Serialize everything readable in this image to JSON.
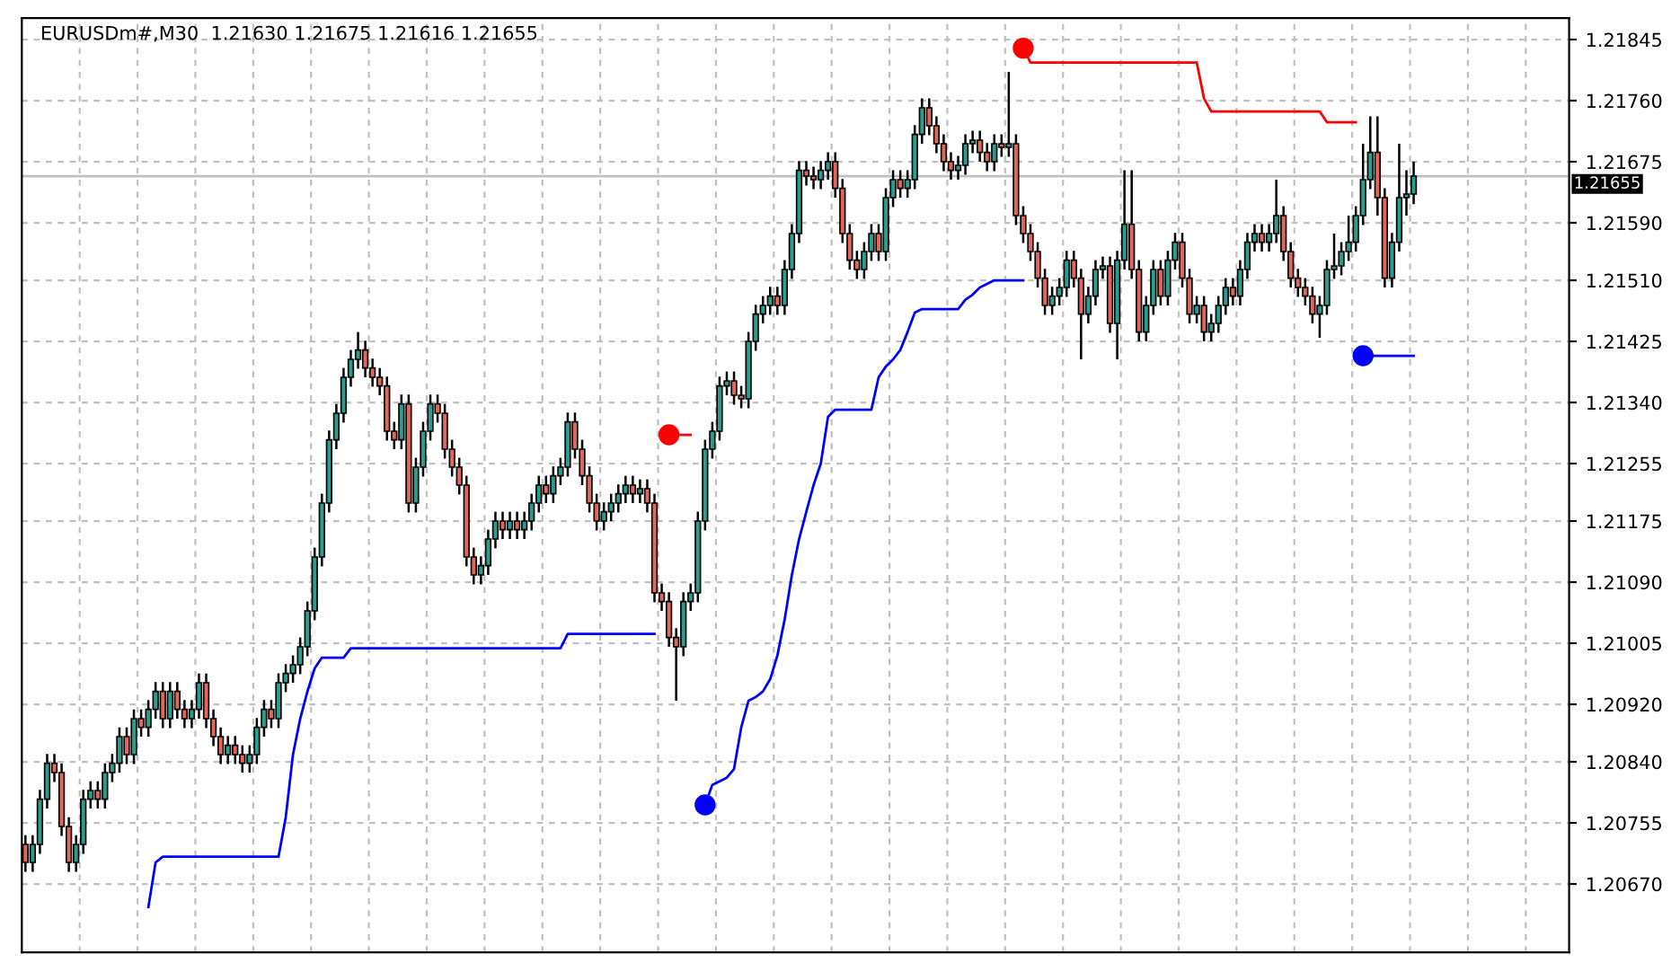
{
  "chart_data": {
    "type": "candlestick",
    "title": "EURUSDm#,M30  1.21630 1.21675 1.21616 1.21655",
    "categories": [
      null,
      null,
      null,
      null,
      null,
      null,
      null,
      null,
      null,
      null,
      null,
      null,
      null,
      null,
      null,
      null,
      null,
      null,
      null,
      null,
      null,
      null,
      null,
      null,
      null,
      null,
      null,
      null,
      null,
      null,
      null,
      null,
      null,
      null,
      null,
      null,
      null,
      null,
      null,
      null,
      null,
      null,
      null,
      null,
      null,
      null,
      null,
      null,
      null,
      null,
      null,
      null,
      null,
      null,
      null,
      null,
      null,
      null,
      null,
      null,
      null,
      null,
      null,
      null,
      null,
      null,
      null,
      null,
      null,
      null,
      null,
      null,
      null,
      null,
      null,
      null,
      null,
      null,
      null,
      null,
      null,
      null,
      null,
      null,
      null,
      null,
      null,
      null,
      null,
      null,
      null,
      null,
      null,
      null,
      null,
      null,
      null,
      null,
      null,
      null,
      null,
      null,
      null,
      null,
      null,
      null,
      null,
      null,
      null,
      null,
      null,
      null,
      null,
      null,
      null,
      null,
      null,
      null,
      null,
      null,
      null,
      null,
      null,
      null,
      null,
      null,
      null,
      null,
      null,
      null,
      null,
      null,
      null,
      null,
      null,
      null,
      null,
      null,
      null,
      null,
      null,
      null,
      null,
      null,
      null,
      null,
      null,
      null,
      null,
      null,
      null,
      null,
      null,
      null,
      null,
      null,
      null,
      null,
      null,
      null,
      null,
      null,
      null,
      null,
      null,
      null,
      null,
      null,
      null,
      null,
      null,
      null,
      null,
      null,
      null,
      null,
      null,
      null,
      null,
      null,
      null,
      null,
      null,
      null,
      null,
      null,
      null,
      null,
      null,
      null,
      null,
      null,
      null,
      null,
      null,
      null,
      null,
      null,
      null,
      null,
      null,
      null,
      null,
      null,
      null,
      null,
      null,
      null,
      null,
      null,
      null,
      null,
      null,
      null
    ],
    "ohlc": [
      [
        1.20725,
        1.20738,
        1.20687,
        1.207
      ],
      [
        1.207,
        1.20738,
        1.20687,
        1.20725
      ],
      [
        1.20725,
        1.20801,
        1.20712,
        1.20788
      ],
      [
        1.20788,
        1.20851,
        1.20775,
        1.20838
      ],
      [
        1.20838,
        1.20851,
        1.20812,
        1.20825
      ],
      [
        1.20825,
        1.20838,
        1.20737,
        1.2075
      ],
      [
        1.2075,
        1.20763,
        1.20687,
        1.207
      ],
      [
        1.207,
        1.20738,
        1.20687,
        1.20725
      ],
      [
        1.20725,
        1.20801,
        1.20712,
        1.20788
      ],
      [
        1.20788,
        1.20813,
        1.20775,
        1.208
      ],
      [
        1.208,
        1.20813,
        1.20775,
        1.20788
      ],
      [
        1.20788,
        1.20838,
        1.20775,
        1.20825
      ],
      [
        1.20825,
        1.20851,
        1.20812,
        1.20838
      ],
      [
        1.20838,
        1.20888,
        1.20825,
        1.20875
      ],
      [
        1.20875,
        1.20888,
        1.20837,
        1.2085
      ],
      [
        1.2085,
        1.20913,
        1.20837,
        1.209
      ],
      [
        1.209,
        1.20913,
        1.20875,
        1.20888
      ],
      [
        1.20888,
        1.20926,
        1.20875,
        1.20913
      ],
      [
        1.20913,
        1.20951,
        1.209,
        1.20938
      ],
      [
        1.20938,
        1.20951,
        1.20887,
        1.209
      ],
      [
        1.209,
        1.20951,
        1.20887,
        1.20938
      ],
      [
        1.20938,
        1.20951,
        1.209,
        1.20913
      ],
      [
        1.20913,
        1.20926,
        1.20887,
        1.209
      ],
      [
        1.209,
        1.20926,
        1.20887,
        1.20913
      ],
      [
        1.20913,
        1.20963,
        1.209,
        1.2095
      ],
      [
        1.2095,
        1.20963,
        1.20887,
        1.209
      ],
      [
        1.209,
        1.20913,
        1.20862,
        1.20875
      ],
      [
        1.20875,
        1.20888,
        1.20837,
        1.2085
      ],
      [
        1.2085,
        1.20876,
        1.20837,
        1.20863
      ],
      [
        1.20863,
        1.20876,
        1.20837,
        1.2085
      ],
      [
        1.2085,
        1.20863,
        1.20825,
        1.20838
      ],
      [
        1.20838,
        1.20863,
        1.20825,
        1.2085
      ],
      [
        1.2085,
        1.20901,
        1.20837,
        1.20888
      ],
      [
        1.20888,
        1.20926,
        1.20875,
        1.20913
      ],
      [
        1.20913,
        1.20926,
        1.20887,
        1.209
      ],
      [
        1.209,
        1.20963,
        1.20887,
        1.2095
      ],
      [
        1.2095,
        1.20976,
        1.20937,
        1.20963
      ],
      [
        1.20963,
        1.20988,
        1.2095,
        1.20975
      ],
      [
        1.20975,
        1.21013,
        1.20962,
        1.21
      ],
      [
        1.21,
        1.21063,
        1.20987,
        1.2105
      ],
      [
        1.2105,
        1.21138,
        1.21037,
        1.21125
      ],
      [
        1.21125,
        1.21213,
        1.21112,
        1.212
      ],
      [
        1.212,
        1.21301,
        1.21187,
        1.21288
      ],
      [
        1.21288,
        1.21338,
        1.21275,
        1.21325
      ],
      [
        1.21325,
        1.21388,
        1.21312,
        1.21375
      ],
      [
        1.21375,
        1.21413,
        1.21362,
        1.214
      ],
      [
        1.214,
        1.21438,
        1.21387,
        1.21413
      ],
      [
        1.21413,
        1.21426,
        1.21375,
        1.21388
      ],
      [
        1.21388,
        1.21401,
        1.21362,
        1.21375
      ],
      [
        1.21375,
        1.21388,
        1.2135,
        1.21363
      ],
      [
        1.21363,
        1.21376,
        1.21287,
        1.213
      ],
      [
        1.213,
        1.21313,
        1.21275,
        1.21288
      ],
      [
        1.21288,
        1.21351,
        1.21275,
        1.21338
      ],
      [
        1.21338,
        1.21351,
        1.21187,
        1.212
      ],
      [
        1.212,
        1.21263,
        1.21187,
        1.2125
      ],
      [
        1.2125,
        1.21313,
        1.21237,
        1.213
      ],
      [
        1.213,
        1.21351,
        1.21287,
        1.21338
      ],
      [
        1.21338,
        1.21351,
        1.21312,
        1.21325
      ],
      [
        1.21325,
        1.21338,
        1.21262,
        1.21275
      ],
      [
        1.21275,
        1.21288,
        1.21237,
        1.2125
      ],
      [
        1.2125,
        1.21263,
        1.21212,
        1.21225
      ],
      [
        1.21225,
        1.21238,
        1.21112,
        1.21125
      ],
      [
        1.21125,
        1.21138,
        1.21087,
        1.211
      ],
      [
        1.211,
        1.21126,
        1.21087,
        1.21113
      ],
      [
        1.21113,
        1.21163,
        1.211,
        1.2115
      ],
      [
        1.2115,
        1.21188,
        1.21137,
        1.21175
      ],
      [
        1.21175,
        1.21188,
        1.2115,
        1.21163
      ],
      [
        1.21163,
        1.21188,
        1.2115,
        1.21175
      ],
      [
        1.21175,
        1.21188,
        1.2115,
        1.21163
      ],
      [
        1.21163,
        1.21188,
        1.2115,
        1.21175
      ],
      [
        1.21175,
        1.21213,
        1.21162,
        1.212
      ],
      [
        1.212,
        1.21238,
        1.21187,
        1.21225
      ],
      [
        1.21225,
        1.21238,
        1.212,
        1.21213
      ],
      [
        1.21213,
        1.21251,
        1.212,
        1.21238
      ],
      [
        1.21238,
        1.21263,
        1.21225,
        1.2125
      ],
      [
        1.2125,
        1.21326,
        1.21237,
        1.21313
      ],
      [
        1.21313,
        1.21326,
        1.21262,
        1.21275
      ],
      [
        1.21275,
        1.21288,
        1.21225,
        1.21238
      ],
      [
        1.21238,
        1.21251,
        1.21187,
        1.212
      ],
      [
        1.212,
        1.21213,
        1.21162,
        1.21175
      ],
      [
        1.21175,
        1.21201,
        1.21162,
        1.21188
      ],
      [
        1.21188,
        1.21213,
        1.21175,
        1.212
      ],
      [
        1.212,
        1.21226,
        1.21187,
        1.21213
      ],
      [
        1.21213,
        1.21238,
        1.212,
        1.21225
      ],
      [
        1.21225,
        1.21238,
        1.212,
        1.21213
      ],
      [
        1.21213,
        1.21233,
        1.212,
        1.2122
      ],
      [
        1.2122,
        1.21233,
        1.21187,
        1.212
      ],
      [
        1.212,
        1.21213,
        1.21062,
        1.21075
      ],
      [
        1.21075,
        1.21088,
        1.2105,
        1.21063
      ],
      [
        1.21063,
        1.21076,
        1.21,
        1.21013
      ],
      [
        1.21013,
        1.21026,
        1.20925,
        1.21
      ],
      [
        1.21,
        1.21076,
        1.20987,
        1.21063
      ],
      [
        1.21063,
        1.21088,
        1.2105,
        1.21075
      ],
      [
        1.21075,
        1.21188,
        1.21062,
        1.21175
      ],
      [
        1.21175,
        1.21288,
        1.21162,
        1.21275
      ],
      [
        1.21275,
        1.21313,
        1.21262,
        1.213
      ],
      [
        1.213,
        1.21376,
        1.21287,
        1.21363
      ],
      [
        1.21363,
        1.21383,
        1.2135,
        1.2137
      ],
      [
        1.2137,
        1.21383,
        1.21337,
        1.2135
      ],
      [
        1.2135,
        1.21363,
        1.21332,
        1.21345
      ],
      [
        1.21345,
        1.21438,
        1.21332,
        1.21425
      ],
      [
        1.21425,
        1.21476,
        1.21412,
        1.21463
      ],
      [
        1.21463,
        1.21488,
        1.2145,
        1.21475
      ],
      [
        1.21475,
        1.21501,
        1.21462,
        1.21488
      ],
      [
        1.21488,
        1.21501,
        1.21462,
        1.21475
      ],
      [
        1.21475,
        1.21538,
        1.21462,
        1.21525
      ],
      [
        1.21525,
        1.21588,
        1.21512,
        1.21575
      ],
      [
        1.21575,
        1.21676,
        1.21562,
        1.21663
      ],
      [
        1.21663,
        1.21676,
        1.21642,
        1.21655
      ],
      [
        1.21655,
        1.21668,
        1.21637,
        1.2165
      ],
      [
        1.2165,
        1.21676,
        1.21637,
        1.21663
      ],
      [
        1.21663,
        1.21688,
        1.2165,
        1.21675
      ],
      [
        1.21675,
        1.21688,
        1.21625,
        1.21638
      ],
      [
        1.21638,
        1.21651,
        1.21562,
        1.21575
      ],
      [
        1.21575,
        1.21588,
        1.21525,
        1.21538
      ],
      [
        1.21538,
        1.21551,
        1.21512,
        1.21525
      ],
      [
        1.21525,
        1.21563,
        1.21512,
        1.2155
      ],
      [
        1.2155,
        1.21588,
        1.21537,
        1.21575
      ],
      [
        1.21575,
        1.21588,
        1.21537,
        1.2155
      ],
      [
        1.2155,
        1.21638,
        1.21537,
        1.21625
      ],
      [
        1.21625,
        1.21663,
        1.21612,
        1.2165
      ],
      [
        1.2165,
        1.21663,
        1.21625,
        1.21638
      ],
      [
        1.21638,
        1.21663,
        1.21625,
        1.2165
      ],
      [
        1.2165,
        1.21726,
        1.21637,
        1.21713
      ],
      [
        1.21713,
        1.21763,
        1.217,
        1.2175
      ],
      [
        1.2175,
        1.21763,
        1.21712,
        1.21725
      ],
      [
        1.21725,
        1.21738,
        1.21687,
        1.217
      ],
      [
        1.217,
        1.21713,
        1.21662,
        1.21675
      ],
      [
        1.21675,
        1.21688,
        1.2165,
        1.21663
      ],
      [
        1.21663,
        1.21683,
        1.2165,
        1.2167
      ],
      [
        1.2167,
        1.21713,
        1.21657,
        1.217
      ],
      [
        1.217,
        1.21718,
        1.21687,
        1.21705
      ],
      [
        1.21705,
        1.21718,
        1.21675,
        1.21688
      ],
      [
        1.21688,
        1.21701,
        1.21662,
        1.21675
      ],
      [
        1.21675,
        1.21713,
        1.21662,
        1.217
      ],
      [
        1.217,
        1.21713,
        1.21682,
        1.21695
      ],
      [
        1.21695,
        1.218,
        1.21682,
        1.217
      ],
      [
        1.217,
        1.21713,
        1.21587,
        1.216
      ],
      [
        1.216,
        1.21613,
        1.21562,
        1.21575
      ],
      [
        1.21575,
        1.21588,
        1.21537,
        1.2155
      ],
      [
        1.2155,
        1.21563,
        1.215,
        1.21513
      ],
      [
        1.21513,
        1.21526,
        1.21462,
        1.21475
      ],
      [
        1.21475,
        1.21501,
        1.21462,
        1.21488
      ],
      [
        1.21488,
        1.21513,
        1.21475,
        1.215
      ],
      [
        1.215,
        1.21551,
        1.21487,
        1.21538
      ],
      [
        1.21538,
        1.21551,
        1.215,
        1.21513
      ],
      [
        1.21513,
        1.21526,
        1.214,
        1.21463
      ],
      [
        1.21463,
        1.21501,
        1.2145,
        1.21488
      ],
      [
        1.21488,
        1.21538,
        1.21475,
        1.21525
      ],
      [
        1.21525,
        1.21543,
        1.21512,
        1.2153
      ],
      [
        1.2153,
        1.21543,
        1.21437,
        1.2145
      ],
      [
        1.2145,
        1.21551,
        1.214,
        1.21538
      ],
      [
        1.21538,
        1.21663,
        1.21525,
        1.21588
      ],
      [
        1.21588,
        1.21663,
        1.21512,
        1.21525
      ],
      [
        1.21525,
        1.21538,
        1.21425,
        1.21438
      ],
      [
        1.21438,
        1.21488,
        1.21425,
        1.21475
      ],
      [
        1.21475,
        1.21538,
        1.21462,
        1.21525
      ],
      [
        1.21525,
        1.21538,
        1.21475,
        1.21488
      ],
      [
        1.21488,
        1.21551,
        1.21475,
        1.21538
      ],
      [
        1.21538,
        1.21576,
        1.21525,
        1.21563
      ],
      [
        1.21563,
        1.21576,
        1.215,
        1.21513
      ],
      [
        1.21513,
        1.21526,
        1.2145,
        1.21463
      ],
      [
        1.21463,
        1.21488,
        1.2145,
        1.21475
      ],
      [
        1.21475,
        1.21488,
        1.21425,
        1.21438
      ],
      [
        1.21438,
        1.21463,
        1.21425,
        1.2145
      ],
      [
        1.2145,
        1.21488,
        1.21437,
        1.21475
      ],
      [
        1.21475,
        1.21513,
        1.21462,
        1.215
      ],
      [
        1.215,
        1.21513,
        1.21475,
        1.21488
      ],
      [
        1.21488,
        1.21538,
        1.21475,
        1.21525
      ],
      [
        1.21525,
        1.21576,
        1.21512,
        1.21563
      ],
      [
        1.21563,
        1.21588,
        1.2155,
        1.21575
      ],
      [
        1.21575,
        1.21588,
        1.2155,
        1.21563
      ],
      [
        1.21563,
        1.21588,
        1.2155,
        1.21575
      ],
      [
        1.21575,
        1.2165,
        1.21562,
        1.216
      ],
      [
        1.216,
        1.21613,
        1.21537,
        1.2155
      ],
      [
        1.2155,
        1.21563,
        1.215,
        1.21513
      ],
      [
        1.21513,
        1.21526,
        1.21487,
        1.215
      ],
      [
        1.215,
        1.21513,
        1.21475,
        1.21488
      ],
      [
        1.21488,
        1.21501,
        1.2145,
        1.21463
      ],
      [
        1.21463,
        1.21488,
        1.2143,
        1.21475
      ],
      [
        1.21475,
        1.21538,
        1.21462,
        1.21525
      ],
      [
        1.21525,
        1.21575,
        1.21512,
        1.2153
      ],
      [
        1.2153,
        1.21563,
        1.21517,
        1.2155
      ],
      [
        1.2155,
        1.216,
        1.21537,
        1.21563
      ],
      [
        1.21563,
        1.21613,
        1.2155,
        1.216
      ],
      [
        1.216,
        1.217,
        1.21587,
        1.2165
      ],
      [
        1.2165,
        1.21738,
        1.21637,
        1.21688
      ],
      [
        1.21688,
        1.21738,
        1.216,
        1.21625
      ],
      [
        1.21625,
        1.21638,
        1.215,
        1.21513
      ],
      [
        1.21513,
        1.21576,
        1.215,
        1.21563
      ],
      [
        1.21563,
        1.217,
        1.2155,
        1.21625
      ],
      [
        1.21625,
        1.21663,
        1.216,
        1.2163
      ],
      [
        1.2163,
        1.21675,
        1.21616,
        1.21655
      ],
      null,
      null,
      null,
      null,
      null,
      null,
      null,
      null,
      null,
      null,
      null,
      null,
      null,
      null,
      null,
      null,
      null,
      null,
      null,
      null,
      null
    ],
    "colors": [
      "#e0675a",
      "#2a9d8f",
      "#2a9d8f",
      "#2a9d8f",
      "#e0675a",
      "#e0675a",
      "#e0675a",
      "#2a9d8f",
      "#2a9d8f",
      "#2a9d8f",
      "#e0675a",
      "#2a9d8f",
      "#2a9d8f",
      "#2a9d8f",
      "#e0675a",
      "#2a9d8f",
      "#e0675a",
      "#2a9d8f",
      "#2a9d8f",
      "#e0675a",
      "#2a9d8f",
      "#e0675a",
      "#e0675a",
      "#2a9d8f",
      "#2a9d8f",
      "#e0675a",
      "#e0675a",
      "#e0675a",
      "#2a9d8f",
      "#e0675a",
      "#e0675a",
      "#2a9d8f",
      "#2a9d8f",
      "#2a9d8f",
      "#e0675a",
      "#2a9d8f",
      "#2a9d8f",
      "#2a9d8f",
      "#2a9d8f",
      "#2a9d8f",
      "#2a9d8f",
      "#2a9d8f",
      "#2a9d8f",
      "#2a9d8f",
      "#2a9d8f",
      "#2a9d8f",
      "#2a9d8f",
      "#e0675a",
      "#e0675a",
      "#e0675a",
      "#e0675a",
      "#e0675a",
      "#2a9d8f",
      "#e0675a",
      "#2a9d8f",
      "#2a9d8f",
      "#2a9d8f",
      "#e0675a",
      "#e0675a",
      "#e0675a",
      "#e0675a",
      "#e0675a",
      "#e0675a",
      "#2a9d8f",
      "#2a9d8f",
      "#2a9d8f",
      "#e0675a",
      "#2a9d8f",
      "#e0675a",
      "#2a9d8f",
      "#2a9d8f",
      "#2a9d8f",
      "#e0675a",
      "#2a9d8f",
      "#2a9d8f",
      "#2a9d8f",
      "#e0675a",
      "#e0675a",
      "#e0675a",
      "#e0675a",
      "#2a9d8f",
      "#2a9d8f",
      "#2a9d8f",
      "#2a9d8f",
      "#e0675a",
      "#2a9d8f",
      "#e0675a",
      "#e0675a",
      "#e0675a",
      "#e0675a",
      "#e0675a",
      "#2a9d8f",
      "#2a9d8f",
      "#2a9d8f",
      "#2a9d8f",
      "#2a9d8f",
      "#2a9d8f",
      "#2a9d8f",
      "#e0675a",
      "#e0675a",
      "#2a9d8f",
      "#2a9d8f",
      "#2a9d8f",
      "#2a9d8f",
      "#e0675a",
      "#2a9d8f",
      "#2a9d8f",
      "#2a9d8f",
      "#e0675a",
      "#e0675a",
      "#2a9d8f",
      "#2a9d8f",
      "#e0675a",
      "#e0675a",
      "#e0675a",
      "#e0675a",
      "#2a9d8f",
      "#2a9d8f",
      "#e0675a",
      "#2a9d8f",
      "#2a9d8f",
      "#e0675a",
      "#2a9d8f",
      "#2a9d8f",
      "#2a9d8f",
      "#e0675a",
      "#e0675a",
      "#e0675a",
      "#e0675a",
      "#2a9d8f",
      "#2a9d8f",
      "#2a9d8f",
      "#e0675a",
      "#e0675a",
      "#2a9d8f",
      "#e0675a",
      "#2a9d8f",
      "#e0675a",
      "#e0675a",
      "#e0675a",
      "#e0675a",
      "#e0675a",
      "#2a9d8f",
      "#2a9d8f",
      "#2a9d8f",
      "#e0675a",
      "#e0675a",
      "#2a9d8f",
      "#2a9d8f",
      "#2a9d8f",
      "#e0675a",
      "#2a9d8f",
      "#2a9d8f",
      "#e0675a",
      "#e0675a",
      "#2a9d8f",
      "#2a9d8f",
      "#e0675a",
      "#2a9d8f",
      "#2a9d8f",
      "#e0675a",
      "#e0675a",
      "#2a9d8f",
      "#e0675a",
      "#2a9d8f",
      "#2a9d8f",
      "#2a9d8f",
      "#e0675a",
      "#2a9d8f",
      "#2a9d8f",
      "#2a9d8f",
      "#e0675a",
      "#2a9d8f",
      "#2a9d8f",
      "#e0675a",
      "#e0675a",
      "#e0675a",
      "#e0675a",
      "#e0675a",
      "#2a9d8f",
      "#2a9d8f",
      "#2a9d8f",
      "#2a9d8f",
      "#2a9d8f",
      "#2a9d8f",
      "#2a9d8f",
      "#2a9d8f",
      "#e0675a",
      "#e0675a",
      "#2a9d8f",
      "#2a9d8f",
      "#2a9d8f",
      "#2a9d8f",
      null,
      null,
      null,
      null,
      null,
      null,
      null,
      null,
      null,
      null,
      null,
      null,
      null,
      null,
      null,
      null,
      null,
      null,
      null,
      null,
      null
    ],
    "series": [
      {
        "type": "line",
        "color": "#0000ff",
        "values": [
          null,
          null,
          null,
          null,
          null,
          null,
          null,
          null,
          null,
          null,
          null,
          null,
          null,
          null,
          null,
          null,
          null,
          1.20638,
          1.207,
          1.20708,
          1.20708,
          1.20708,
          1.20708,
          1.20708,
          1.20708,
          1.20708,
          1.20708,
          1.20708,
          1.20708,
          1.20708,
          1.20708,
          1.20708,
          1.20708,
          1.20708,
          1.20708,
          1.20708,
          1.20763,
          1.2085,
          1.209,
          1.20938,
          1.2097,
          1.20985,
          1.20985,
          1.20985,
          1.20985,
          1.20998,
          1.20998,
          1.20998,
          1.20998,
          1.20998,
          1.20998,
          1.20998,
          1.20998,
          1.20998,
          1.20998,
          1.20998,
          1.20998,
          1.20998,
          1.20998,
          1.20998,
          1.20998,
          1.20998,
          1.20998,
          1.20998,
          1.20998,
          1.20998,
          1.20998,
          1.20998,
          1.20998,
          1.20998,
          1.20998,
          1.20998,
          1.20998,
          1.20998,
          1.20998,
          1.21018,
          1.21018,
          1.21018,
          1.21018,
          1.21018,
          1.21018,
          1.21018,
          1.21018,
          1.21018,
          1.21018,
          1.21018,
          1.21018,
          1.21018,
          null,
          null,
          null,
          null,
          null,
          null,
          1.2078,
          1.20808,
          1.20813,
          1.20818,
          1.2083,
          1.20888,
          1.20925,
          1.2093,
          1.20938,
          1.20955,
          1.20988,
          1.21038,
          1.211,
          1.2115,
          1.21188,
          1.21225,
          1.21255,
          1.2132,
          1.2133,
          1.2133,
          1.2133,
          1.2133,
          1.2133,
          1.2133,
          1.21375,
          1.2139,
          1.214,
          1.21413,
          1.21438,
          1.21465,
          1.2147,
          1.2147,
          1.2147,
          1.2147,
          1.2147,
          1.2147,
          1.21483,
          1.2149,
          1.215,
          1.21505,
          1.2151,
          1.2151,
          1.2151,
          1.2151,
          1.2151,
          null,
          null,
          null,
          null,
          null,
          null,
          null,
          null,
          null,
          null,
          null,
          null,
          null,
          null,
          null,
          null,
          null,
          null,
          null,
          null,
          null,
          null,
          null,
          null,
          null,
          null,
          null,
          null,
          null,
          null,
          null,
          null,
          null,
          null,
          null,
          null,
          null,
          null,
          null,
          null,
          null,
          null,
          null,
          null,
          null,
          null,
          1.21405,
          1.21405,
          1.21405,
          1.21405,
          1.21405,
          1.21405,
          1.21405,
          1.21405,
          null,
          null,
          null,
          null,
          null,
          null,
          null,
          null,
          null,
          null,
          null,
          null,
          null,
          null,
          null,
          null,
          null,
          null,
          null,
          null,
          null
        ]
      },
      {
        "type": "line",
        "color": "#ff0000",
        "values": [
          null,
          null,
          null,
          null,
          null,
          null,
          null,
          null,
          null,
          null,
          null,
          null,
          null,
          null,
          null,
          null,
          null,
          null,
          null,
          null,
          null,
          null,
          null,
          null,
          null,
          null,
          null,
          null,
          null,
          null,
          null,
          null,
          null,
          null,
          null,
          null,
          null,
          null,
          null,
          null,
          null,
          null,
          null,
          null,
          null,
          null,
          null,
          null,
          null,
          null,
          null,
          null,
          null,
          null,
          null,
          null,
          null,
          null,
          null,
          null,
          null,
          null,
          null,
          null,
          null,
          null,
          null,
          null,
          null,
          null,
          null,
          null,
          null,
          null,
          null,
          null,
          null,
          null,
          null,
          null,
          null,
          null,
          null,
          null,
          null,
          null,
          null,
          null,
          null,
          1.21295,
          1.21295,
          1.21295,
          1.21295,
          null,
          null,
          null,
          null,
          null,
          null,
          null,
          null,
          null,
          null,
          null,
          null,
          null,
          null,
          null,
          null,
          null,
          null,
          null,
          null,
          null,
          null,
          null,
          null,
          null,
          null,
          null,
          null,
          null,
          null,
          null,
          null,
          null,
          null,
          null,
          null,
          null,
          null,
          null,
          null,
          null,
          null,
          null,
          null,
          null,
          1.21833,
          1.21813,
          1.21813,
          1.21813,
          1.21813,
          1.21813,
          1.21813,
          1.21813,
          1.21813,
          1.21813,
          1.21813,
          1.21813,
          1.21813,
          1.21813,
          1.21813,
          1.21813,
          1.21813,
          1.21813,
          1.21813,
          1.21813,
          1.21813,
          1.21813,
          1.21813,
          1.21813,
          1.21813,
          1.21763,
          1.21745,
          1.21745,
          1.21745,
          1.21745,
          1.21745,
          1.21745,
          1.21745,
          1.21745,
          1.21745,
          1.21745,
          1.21745,
          1.21745,
          1.21745,
          1.21745,
          1.21745,
          1.21745,
          1.2173,
          1.2173,
          1.2173,
          1.2173,
          1.2173,
          null,
          null,
          null,
          null,
          null,
          null,
          null,
          null,
          null,
          null,
          null,
          null,
          null,
          null,
          null,
          null,
          null,
          null,
          null,
          null,
          null,
          null,
          null,
          null,
          null,
          null,
          null,
          null,
          null
        ]
      },
      {
        "type": "scatter",
        "color": "#0000ff",
        "marker": "circle",
        "values": [
          null,
          null,
          null,
          null,
          null,
          null,
          null,
          null,
          null,
          null,
          null,
          null,
          null,
          null,
          null,
          null,
          null,
          null,
          null,
          null,
          null,
          null,
          null,
          null,
          null,
          null,
          null,
          null,
          null,
          null,
          null,
          null,
          null,
          null,
          null,
          null,
          null,
          null,
          null,
          null,
          null,
          null,
          null,
          null,
          null,
          null,
          null,
          null,
          null,
          null,
          null,
          null,
          null,
          null,
          null,
          null,
          null,
          null,
          null,
          null,
          null,
          null,
          null,
          null,
          null,
          null,
          null,
          null,
          null,
          null,
          null,
          null,
          null,
          null,
          null,
          null,
          null,
          null,
          null,
          null,
          null,
          null,
          null,
          null,
          null,
          null,
          null,
          null,
          null,
          null,
          null,
          null,
          null,
          null,
          1.2078,
          null,
          null,
          null,
          null,
          null,
          null,
          null,
          null,
          null,
          null,
          null,
          null,
          null,
          null,
          null,
          null,
          null,
          null,
          null,
          null,
          null,
          null,
          null,
          null,
          null,
          null,
          null,
          null,
          null,
          null,
          null,
          null,
          null,
          null,
          null,
          null,
          null,
          null,
          null,
          null,
          null,
          null,
          null,
          null,
          null,
          null,
          null,
          null,
          null,
          null,
          null,
          null,
          null,
          null,
          null,
          null,
          null,
          null,
          null,
          null,
          null,
          null,
          null,
          null,
          null,
          null,
          null,
          null,
          null,
          null,
          null,
          null,
          null,
          null,
          null,
          null,
          null,
          null,
          null,
          null,
          null,
          null,
          null,
          null,
          null,
          null,
          null,
          null,
          null,
          null,
          1.21405,
          null,
          null,
          null,
          null,
          null,
          null,
          null,
          null,
          null,
          null,
          null,
          null,
          null,
          null,
          null,
          null,
          null,
          null,
          null,
          null,
          null,
          null,
          null,
          null,
          null,
          null,
          null,
          null
        ]
      },
      {
        "type": "scatter",
        "color": "#ff0000",
        "marker": "circle",
        "values": [
          null,
          null,
          null,
          null,
          null,
          null,
          null,
          null,
          null,
          null,
          null,
          null,
          null,
          null,
          null,
          null,
          null,
          null,
          null,
          null,
          null,
          null,
          null,
          null,
          null,
          null,
          null,
          null,
          null,
          null,
          null,
          null,
          null,
          null,
          null,
          null,
          null,
          null,
          null,
          null,
          null,
          null,
          null,
          null,
          null,
          null,
          null,
          null,
          null,
          null,
          null,
          null,
          null,
          null,
          null,
          null,
          null,
          null,
          null,
          null,
          null,
          null,
          null,
          null,
          null,
          null,
          null,
          null,
          null,
          null,
          null,
          null,
          null,
          null,
          null,
          null,
          null,
          null,
          null,
          null,
          null,
          null,
          null,
          null,
          null,
          null,
          null,
          null,
          null,
          1.21295,
          null,
          null,
          null,
          null,
          null,
          null,
          null,
          null,
          null,
          null,
          null,
          null,
          null,
          null,
          null,
          null,
          null,
          null,
          null,
          null,
          null,
          null,
          null,
          null,
          null,
          null,
          null,
          null,
          null,
          null,
          null,
          null,
          null,
          null,
          null,
          null,
          null,
          null,
          null,
          null,
          null,
          null,
          null,
          null,
          null,
          null,
          null,
          null,
          1.21833,
          null,
          null,
          null,
          null,
          null,
          null,
          null,
          null,
          null,
          null,
          null,
          null,
          null,
          null,
          null,
          null,
          null,
          null,
          null,
          null,
          null,
          null,
          null,
          null,
          null,
          null,
          null,
          null,
          null,
          null,
          null,
          null,
          null,
          null,
          null,
          null,
          null,
          null,
          null,
          null,
          null,
          null,
          null,
          null,
          null,
          null,
          null,
          null,
          null,
          null,
          null,
          null,
          null,
          null,
          null,
          null,
          null,
          null,
          null,
          null,
          null,
          null,
          null,
          null,
          null,
          null,
          null,
          null,
          null,
          null,
          null,
          null,
          null,
          null,
          null
        ]
      }
    ],
    "ylim": [
      1.20575,
      1.21875
    ],
    "yticks": [
      {
        "value": 1.21845,
        "label": "1.21845"
      },
      {
        "value": 1.2176,
        "label": "1.21760"
      },
      {
        "value": 1.21675,
        "label": "1.21675"
      },
      {
        "value": 1.2159,
        "label": "1.21590"
      },
      {
        "value": 1.2151,
        "label": "1.21510"
      },
      {
        "value": 1.21425,
        "label": "1.21425"
      },
      {
        "value": 1.2134,
        "label": "1.21340"
      },
      {
        "value": 1.21255,
        "label": "1.21255"
      },
      {
        "value": 1.21175,
        "label": "1.21175"
      },
      {
        "value": 1.2109,
        "label": "1.21090"
      },
      {
        "value": 1.21005,
        "label": "1.21005"
      },
      {
        "value": 1.2092,
        "label": "1.20920"
      },
      {
        "value": 1.2084,
        "label": "1.20840"
      },
      {
        "value": 1.20755,
        "label": "1.20755"
      },
      {
        "value": 1.2067,
        "label": "1.20670"
      }
    ],
    "ref_lines": [
      {
        "axis": "y",
        "value": 1.21655,
        "label": "1.21655",
        "color": "#c0c0c0"
      }
    ],
    "grid": true,
    "tick_labels": "y"
  }
}
